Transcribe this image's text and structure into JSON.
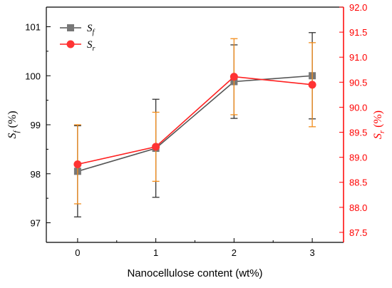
{
  "chart_data": {
    "type": "line",
    "categories": [
      "0",
      "1",
      "2",
      "3"
    ],
    "x": [
      0,
      1,
      2,
      3
    ],
    "xlabel": "Nanocellulose content (wt%)",
    "xlim": [
      -0.4,
      3.4
    ],
    "left_axis": {
      "label_main": "S",
      "label_sub": "f",
      "label_unit": " (%)",
      "ylim": [
        96.6,
        101.4
      ],
      "ticks": [
        97,
        98,
        99,
        100,
        101
      ],
      "color": "#000000"
    },
    "right_axis": {
      "label_main": "S",
      "label_sub": "r",
      "label_unit": " (%)",
      "ylim": [
        87.3,
        92.0
      ],
      "ticks": [
        87.5,
        88.0,
        88.5,
        89.0,
        89.5,
        90.0,
        90.5,
        91.0,
        91.5,
        92.0
      ],
      "tick_labels": [
        "87.5",
        "88.0",
        "88.5",
        "89.0",
        "89.5",
        "90.0",
        "90.5",
        "91.0",
        "91.5",
        "92.0"
      ],
      "color": "#ff0000"
    },
    "series": [
      {
        "name_main": "S",
        "name_sub": "f",
        "axis": "left",
        "marker": "square",
        "line_color": "#555555",
        "marker_color": "#777777",
        "err_color": "#333333",
        "values": [
          98.05,
          98.52,
          99.88,
          100.0
        ],
        "err": [
          0.93,
          1.0,
          0.75,
          0.88
        ]
      },
      {
        "name_main": "S",
        "name_sub": "r",
        "axis": "right",
        "marker": "circle",
        "line_color": "#ff2020",
        "marker_color": "#ff3333",
        "err_color": "#f28c1a",
        "values": [
          88.86,
          89.21,
          90.61,
          90.45
        ],
        "err": [
          0.79,
          0.69,
          0.76,
          0.84
        ]
      }
    ],
    "legend_position": "top-left",
    "grid": false
  }
}
